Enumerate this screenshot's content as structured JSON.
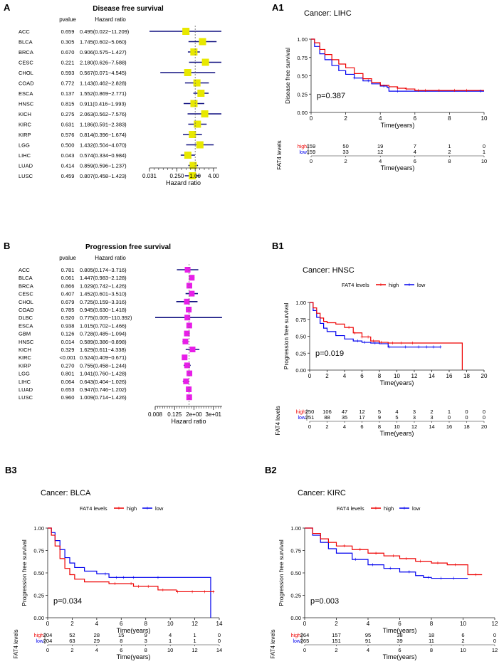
{
  "forests": [
    {
      "id": "A",
      "panel_label": "A",
      "title": "Disease free survival",
      "col_pvalue": "pvalue",
      "col_hr": "Hazard ratio",
      "xlabel": "Hazard ratio",
      "color": "#e8e800",
      "log_min": -5.0,
      "log_max": 2.4,
      "ticks": [
        {
          "label": "0.031",
          "log2": -5.0
        },
        {
          "label": "0.250",
          "log2": -2.0
        },
        {
          "label": "1.00",
          "log2": 0.0
        },
        {
          "label": "4.00",
          "log2": 2.0
        }
      ],
      "rows": [
        {
          "cancer": "ACC",
          "pvalue": "0.659",
          "hr_text": "0.495(0.022−11.209)",
          "hr": 0.495,
          "lo": 0.022,
          "hi": 11.209
        },
        {
          "cancer": "BLCA",
          "pvalue": "0.305",
          "hr_text": "1.745(0.602−5.060)",
          "hr": 1.745,
          "lo": 0.602,
          "hi": 5.06
        },
        {
          "cancer": "BRCA",
          "pvalue": "0.670",
          "hr_text": "0.906(0.575−1.427)",
          "hr": 0.906,
          "lo": 0.575,
          "hi": 1.427
        },
        {
          "cancer": "CESC",
          "pvalue": "0.221",
          "hr_text": "2.180(0.626−7.588)",
          "hr": 2.18,
          "lo": 0.626,
          "hi": 7.588
        },
        {
          "cancer": "CHOL",
          "pvalue": "0.593",
          "hr_text": "0.567(0.071−4.545)",
          "hr": 0.567,
          "lo": 0.071,
          "hi": 4.545
        },
        {
          "cancer": "COAD",
          "pvalue": "0.772",
          "hr_text": "1.143(0.462−2.828)",
          "hr": 1.143,
          "lo": 0.462,
          "hi": 2.828
        },
        {
          "cancer": "ESCA",
          "pvalue": "0.137",
          "hr_text": "1.552(0.869−2.771)",
          "hr": 1.552,
          "lo": 0.869,
          "hi": 2.771
        },
        {
          "cancer": "HNSC",
          "pvalue": "0.815",
          "hr_text": "0.911(0.416−1.993)",
          "hr": 0.911,
          "lo": 0.416,
          "hi": 1.993
        },
        {
          "cancer": "KICH",
          "pvalue": "0.275",
          "hr_text": "2.063(0.562−7.576)",
          "hr": 2.063,
          "lo": 0.562,
          "hi": 7.576
        },
        {
          "cancer": "KIRC",
          "pvalue": "0.631",
          "hr_text": "1.186(0.591−2.383)",
          "hr": 1.186,
          "lo": 0.591,
          "hi": 2.383
        },
        {
          "cancer": "KIRP",
          "pvalue": "0.576",
          "hr_text": "0.814(0.396−1.674)",
          "hr": 0.814,
          "lo": 0.396,
          "hi": 1.674
        },
        {
          "cancer": "LGG",
          "pvalue": "0.500",
          "hr_text": "1.432(0.504−4.070)",
          "hr": 1.432,
          "lo": 0.504,
          "hi": 4.07
        },
        {
          "cancer": "LIHC",
          "pvalue": "0.043",
          "hr_text": "0.574(0.334−0.984)",
          "hr": 0.574,
          "lo": 0.334,
          "hi": 0.984
        },
        {
          "cancer": "LUAD",
          "pvalue": "0.414",
          "hr_text": "0.859(0.596−1.237)",
          "hr": 0.859,
          "lo": 0.596,
          "hi": 1.237
        },
        {
          "cancer": "LUSC",
          "pvalue": "0.459",
          "hr_text": "0.807(0.458−1.423)",
          "hr": 0.807,
          "lo": 0.458,
          "hi": 1.423
        }
      ]
    },
    {
      "id": "B",
      "panel_label": "B",
      "title": "Progression free survival",
      "col_pvalue": "pvalue",
      "col_hr": "Hazard ratio",
      "xlabel": "Hazard ratio",
      "color": "#e81ee8",
      "log_min": -7.0,
      "log_max": 6.8,
      "ticks": [
        {
          "label": "0.008",
          "log2": -7.0
        },
        {
          "label": "0.125",
          "log2": -3.0
        },
        {
          "label": "2e+00",
          "log2": 1.0
        },
        {
          "label": "3e+01",
          "log2": 5.0
        }
      ],
      "rows": [
        {
          "cancer": "ACC",
          "pvalue": "0.781",
          "hr_text": "0.805(0.174−3.716)",
          "hr": 0.805,
          "lo": 0.174,
          "hi": 3.716
        },
        {
          "cancer": "BLCA",
          "pvalue": "0.061",
          "hr_text": "1.447(0.983−2.128)",
          "hr": 1.447,
          "lo": 0.983,
          "hi": 2.128
        },
        {
          "cancer": "BRCA",
          "pvalue": "0.866",
          "hr_text": "1.029(0.742−1.426)",
          "hr": 1.029,
          "lo": 0.742,
          "hi": 1.426
        },
        {
          "cancer": "CESC",
          "pvalue": "0.407",
          "hr_text": "1.452(0.601−3.510)",
          "hr": 1.452,
          "lo": 0.601,
          "hi": 3.51
        },
        {
          "cancer": "CHOL",
          "pvalue": "0.679",
          "hr_text": "0.725(0.159−3.316)",
          "hr": 0.725,
          "lo": 0.159,
          "hi": 3.316
        },
        {
          "cancer": "COAD",
          "pvalue": "0.785",
          "hr_text": "0.945(0.630−1.418)",
          "hr": 0.945,
          "lo": 0.63,
          "hi": 1.418
        },
        {
          "cancer": "DLBC",
          "pvalue": "0.920",
          "hr_text": "0.775(0.005−110.392)",
          "hr": 0.775,
          "lo": 0.005,
          "hi": 110.392
        },
        {
          "cancer": "ESCA",
          "pvalue": "0.938",
          "hr_text": "1.015(0.702−1.466)",
          "hr": 1.015,
          "lo": 0.702,
          "hi": 1.466
        },
        {
          "cancer": "GBM",
          "pvalue": "0.126",
          "hr_text": "0.728(0.485−1.094)",
          "hr": 0.728,
          "lo": 0.485,
          "hi": 1.094
        },
        {
          "cancer": "HNSC",
          "pvalue": "0.014",
          "hr_text": "0.589(0.386−0.898)",
          "hr": 0.589,
          "lo": 0.386,
          "hi": 0.898
        },
        {
          "cancer": "KICH",
          "pvalue": "0.329",
          "hr_text": "1.629(0.611−4.338)",
          "hr": 1.629,
          "lo": 0.611,
          "hi": 4.338
        },
        {
          "cancer": "KIRC",
          "pvalue": "<0.001",
          "hr_text": "0.524(0.409−0.671)",
          "hr": 0.524,
          "lo": 0.409,
          "hi": 0.671
        },
        {
          "cancer": "KIRP",
          "pvalue": "0.270",
          "hr_text": "0.755(0.458−1.244)",
          "hr": 0.755,
          "lo": 0.458,
          "hi": 1.244
        },
        {
          "cancer": "LGG",
          "pvalue": "0.801",
          "hr_text": "1.041(0.760−1.428)",
          "hr": 1.041,
          "lo": 0.76,
          "hi": 1.428
        },
        {
          "cancer": "LIHC",
          "pvalue": "0.064",
          "hr_text": "0.643(0.404−1.026)",
          "hr": 0.643,
          "lo": 0.404,
          "hi": 1.026
        },
        {
          "cancer": "LUAD",
          "pvalue": "0.653",
          "hr_text": "0.947(0.746−1.202)",
          "hr": 0.947,
          "lo": 0.746,
          "hi": 1.202
        },
        {
          "cancer": "LUSC",
          "pvalue": "0.960",
          "hr_text": "1.009(0.714−1.426)",
          "hr": 1.009,
          "lo": 0.714,
          "hi": 1.426
        }
      ]
    }
  ],
  "km": [
    {
      "id": "A1",
      "panel_label": "A1",
      "cancer_title": "Cancer: LIHC",
      "show_legend": false,
      "legend_title": "FAT4 levels",
      "legend_high": "high",
      "legend_low": "low",
      "ylabel": "Disease free survival",
      "xlabel": "Time(years)",
      "pvalue": "p=0.387",
      "xmax": 10,
      "xticks": [
        0,
        2,
        4,
        6,
        8,
        10
      ],
      "yticks": [
        "0.00",
        "0.25",
        "0.50",
        "0.75",
        "1.00"
      ],
      "risk_title": "FAT4 levels",
      "risk_times": [
        0,
        2,
        4,
        6,
        8,
        10
      ],
      "risk_high": [
        159,
        50,
        19,
        7,
        1,
        0
      ],
      "risk_low": [
        159,
        33,
        12,
        4,
        2,
        1
      ],
      "high_curve": [
        [
          0,
          1.0
        ],
        [
          0.2,
          0.95
        ],
        [
          0.5,
          0.86
        ],
        [
          0.8,
          0.79
        ],
        [
          1.2,
          0.72
        ],
        [
          1.6,
          0.66
        ],
        [
          2.0,
          0.61
        ],
        [
          2.5,
          0.53
        ],
        [
          3.0,
          0.46
        ],
        [
          3.5,
          0.41
        ],
        [
          4.0,
          0.37
        ],
        [
          4.5,
          0.35
        ],
        [
          5.0,
          0.33
        ],
        [
          5.5,
          0.32
        ],
        [
          6.0,
          0.3
        ],
        [
          10.0,
          0.3
        ]
      ],
      "low_curve": [
        [
          0,
          1.0
        ],
        [
          0.2,
          0.9
        ],
        [
          0.5,
          0.8
        ],
        [
          0.8,
          0.72
        ],
        [
          1.2,
          0.64
        ],
        [
          1.6,
          0.57
        ],
        [
          2.0,
          0.52
        ],
        [
          2.5,
          0.47
        ],
        [
          3.0,
          0.43
        ],
        [
          3.5,
          0.39
        ],
        [
          4.0,
          0.36
        ],
        [
          4.4,
          0.34
        ],
        [
          4.5,
          0.29
        ],
        [
          10.0,
          0.29
        ]
      ],
      "high_censor": [
        5.0,
        5.5,
        6.2,
        6.6,
        7.4,
        8.3,
        9.0
      ],
      "low_censor": [
        2.5,
        3.3,
        4.2,
        5.0,
        9.8
      ],
      "high_color": "#ee0000",
      "low_color": "#0000ee"
    },
    {
      "id": "B1",
      "panel_label": "B1",
      "cancer_title": "Cancer: HNSC",
      "show_legend": true,
      "legend_title": "FAT4 levels",
      "legend_high": "high",
      "legend_low": "low",
      "ylabel": "Progression free survival",
      "xlabel": "Time(years)",
      "pvalue": "p=0.019",
      "xmax": 20,
      "xticks": [
        0,
        2,
        4,
        6,
        8,
        10,
        12,
        14,
        16,
        18,
        20
      ],
      "yticks": [
        "0.00",
        "0.25",
        "0.50",
        "0.75",
        "1.00"
      ],
      "risk_title": "FAT4 levels",
      "risk_times": [
        0,
        2,
        4,
        6,
        8,
        10,
        12,
        14,
        16,
        18,
        20
      ],
      "risk_high": [
        250,
        106,
        47,
        12,
        5,
        4,
        3,
        2,
        1,
        0,
        0
      ],
      "risk_low": [
        251,
        88,
        35,
        17,
        9,
        5,
        3,
        3,
        0,
        0,
        0
      ],
      "high_curve": [
        [
          0,
          1.0
        ],
        [
          0.4,
          0.92
        ],
        [
          0.8,
          0.84
        ],
        [
          1.2,
          0.77
        ],
        [
          1.6,
          0.72
        ],
        [
          2.0,
          0.7
        ],
        [
          3.0,
          0.68
        ],
        [
          4.0,
          0.63
        ],
        [
          5.0,
          0.55
        ],
        [
          6.0,
          0.49
        ],
        [
          7.0,
          0.43
        ],
        [
          8.0,
          0.41
        ],
        [
          9.0,
          0.4
        ],
        [
          17.5,
          0.4
        ],
        [
          17.5,
          0.0
        ]
      ],
      "low_curve": [
        [
          0,
          1.0
        ],
        [
          0.4,
          0.88
        ],
        [
          0.8,
          0.78
        ],
        [
          1.2,
          0.69
        ],
        [
          1.6,
          0.62
        ],
        [
          2.0,
          0.57
        ],
        [
          3.0,
          0.51
        ],
        [
          4.0,
          0.46
        ],
        [
          5.0,
          0.43
        ],
        [
          6.0,
          0.41
        ],
        [
          7.0,
          0.4
        ],
        [
          8.0,
          0.39
        ],
        [
          9.0,
          0.34
        ],
        [
          15.0,
          0.34
        ]
      ],
      "high_censor": [
        4.5,
        5.2,
        6.0,
        6.7,
        7.3,
        8.2,
        9.5,
        10.5,
        11.8
      ],
      "low_censor": [
        5.5,
        6.3,
        7.5,
        9.1,
        11.0,
        12.5,
        13.4,
        14.2,
        15.0
      ],
      "high_color": "#ee0000",
      "low_color": "#0000ee"
    },
    {
      "id": "B3",
      "panel_label": "B3",
      "cancer_title": "Cancer: BLCA",
      "show_legend": true,
      "legend_title": "FAT4 levels",
      "legend_high": "high",
      "legend_low": "low",
      "ylabel": "Progression free survival",
      "xlabel": "Time(years)",
      "pvalue": "p=0.034",
      "xmax": 14,
      "xticks": [
        0,
        2,
        4,
        6,
        8,
        10,
        12,
        14
      ],
      "yticks": [
        "0.00",
        "0.25",
        "0.50",
        "0.75",
        "1.00"
      ],
      "risk_title": "FAT4 levels",
      "risk_times": [
        0,
        2,
        4,
        6,
        8,
        10,
        12,
        14
      ],
      "risk_high": [
        204,
        52,
        28,
        15,
        9,
        4,
        1,
        0
      ],
      "risk_low": [
        204,
        63,
        29,
        8,
        3,
        1,
        1,
        0
      ],
      "high_curve": [
        [
          0,
          1.0
        ],
        [
          0.3,
          0.92
        ],
        [
          0.6,
          0.8
        ],
        [
          1.0,
          0.66
        ],
        [
          1.4,
          0.55
        ],
        [
          1.8,
          0.48
        ],
        [
          2.2,
          0.43
        ],
        [
          3.0,
          0.4
        ],
        [
          5.0,
          0.38
        ],
        [
          7.0,
          0.35
        ],
        [
          9.0,
          0.31
        ],
        [
          10.5,
          0.29
        ],
        [
          13.6,
          0.29
        ]
      ],
      "low_curve": [
        [
          0,
          1.0
        ],
        [
          0.3,
          0.95
        ],
        [
          0.6,
          0.86
        ],
        [
          1.0,
          0.76
        ],
        [
          1.4,
          0.67
        ],
        [
          1.8,
          0.61
        ],
        [
          2.2,
          0.56
        ],
        [
          3.0,
          0.52
        ],
        [
          4.0,
          0.49
        ],
        [
          5.0,
          0.45
        ],
        [
          13.3,
          0.45
        ],
        [
          13.3,
          0.0
        ]
      ],
      "high_censor": [
        5.5,
        6.8,
        7.4,
        8.2,
        9.4,
        10.6,
        11.8,
        12.8,
        13.5
      ],
      "low_censor": [
        4.7,
        5.6,
        6.2,
        7.0,
        9.0
      ],
      "high_color": "#ee0000",
      "low_color": "#0000ee"
    },
    {
      "id": "B2",
      "panel_label": "B2",
      "cancer_title": "Cancer: KIRC",
      "show_legend": true,
      "legend_title": "FAT4 levels",
      "legend_high": "high",
      "legend_low": "low",
      "ylabel": "Progression free survival",
      "xlabel": "Time(years)",
      "pvalue": "p=0.003",
      "xmax": 12,
      "xticks": [
        0,
        2,
        4,
        6,
        8,
        10,
        12
      ],
      "yticks": [
        "0.00",
        "0.25",
        "0.50",
        "0.75",
        "1.00"
      ],
      "risk_title": "FAT4 levels",
      "risk_times": [
        0,
        2,
        4,
        6,
        8,
        10,
        12
      ],
      "risk_high": [
        264,
        157,
        95,
        38,
        18,
        6,
        0
      ],
      "risk_low": [
        265,
        151,
        91,
        39,
        11,
        2,
        0
      ],
      "high_curve": [
        [
          0,
          1.0
        ],
        [
          0.5,
          0.94
        ],
        [
          1.0,
          0.88
        ],
        [
          1.5,
          0.84
        ],
        [
          2.0,
          0.8
        ],
        [
          3.0,
          0.76
        ],
        [
          4.0,
          0.72
        ],
        [
          5.0,
          0.69
        ],
        [
          6.0,
          0.66
        ],
        [
          7.0,
          0.63
        ],
        [
          8.0,
          0.61
        ],
        [
          9.0,
          0.59
        ],
        [
          10.3,
          0.57
        ],
        [
          10.3,
          0.48
        ],
        [
          11.2,
          0.48
        ]
      ],
      "low_curve": [
        [
          0,
          1.0
        ],
        [
          0.5,
          0.92
        ],
        [
          1.0,
          0.84
        ],
        [
          1.5,
          0.77
        ],
        [
          2.0,
          0.72
        ],
        [
          3.0,
          0.65
        ],
        [
          4.0,
          0.59
        ],
        [
          5.0,
          0.55
        ],
        [
          6.0,
          0.51
        ],
        [
          7.0,
          0.47
        ],
        [
          7.5,
          0.45
        ],
        [
          8.0,
          0.44
        ],
        [
          10.3,
          0.44
        ]
      ],
      "high_censor": [
        2.5,
        3.5,
        4.5,
        5.6,
        6.4,
        7.3,
        8.4,
        9.5,
        10.8
      ],
      "low_censor": [
        3.2,
        4.3,
        5.4,
        6.6,
        7.8,
        8.6,
        9.4
      ],
      "high_color": "#ee0000",
      "low_color": "#0000ee"
    }
  ]
}
